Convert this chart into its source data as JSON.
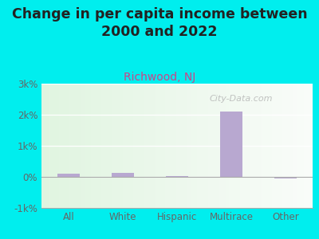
{
  "title": "Change in per capita income between\n2000 and 2022",
  "subtitle": "Richwood, NJ",
  "categories": [
    "All",
    "White",
    "Hispanic",
    "Multirace",
    "Other"
  ],
  "values": [
    100,
    130,
    30,
    2100,
    -60
  ],
  "bar_color": "#b8a8d0",
  "title_fontsize": 12.5,
  "subtitle_fontsize": 10,
  "subtitle_color": "#cc4488",
  "title_color": "#222222",
  "background_color": "#00eeee",
  "ylim": [
    -1000,
    3000
  ],
  "yticks": [
    -1000,
    0,
    1000,
    2000,
    3000
  ],
  "ytick_labels": [
    "-1k%",
    "0%",
    "1k%",
    "2k%",
    "3k%"
  ],
  "watermark": "City-Data.com",
  "axis_label_color": "#666666",
  "bar_width": 0.4
}
